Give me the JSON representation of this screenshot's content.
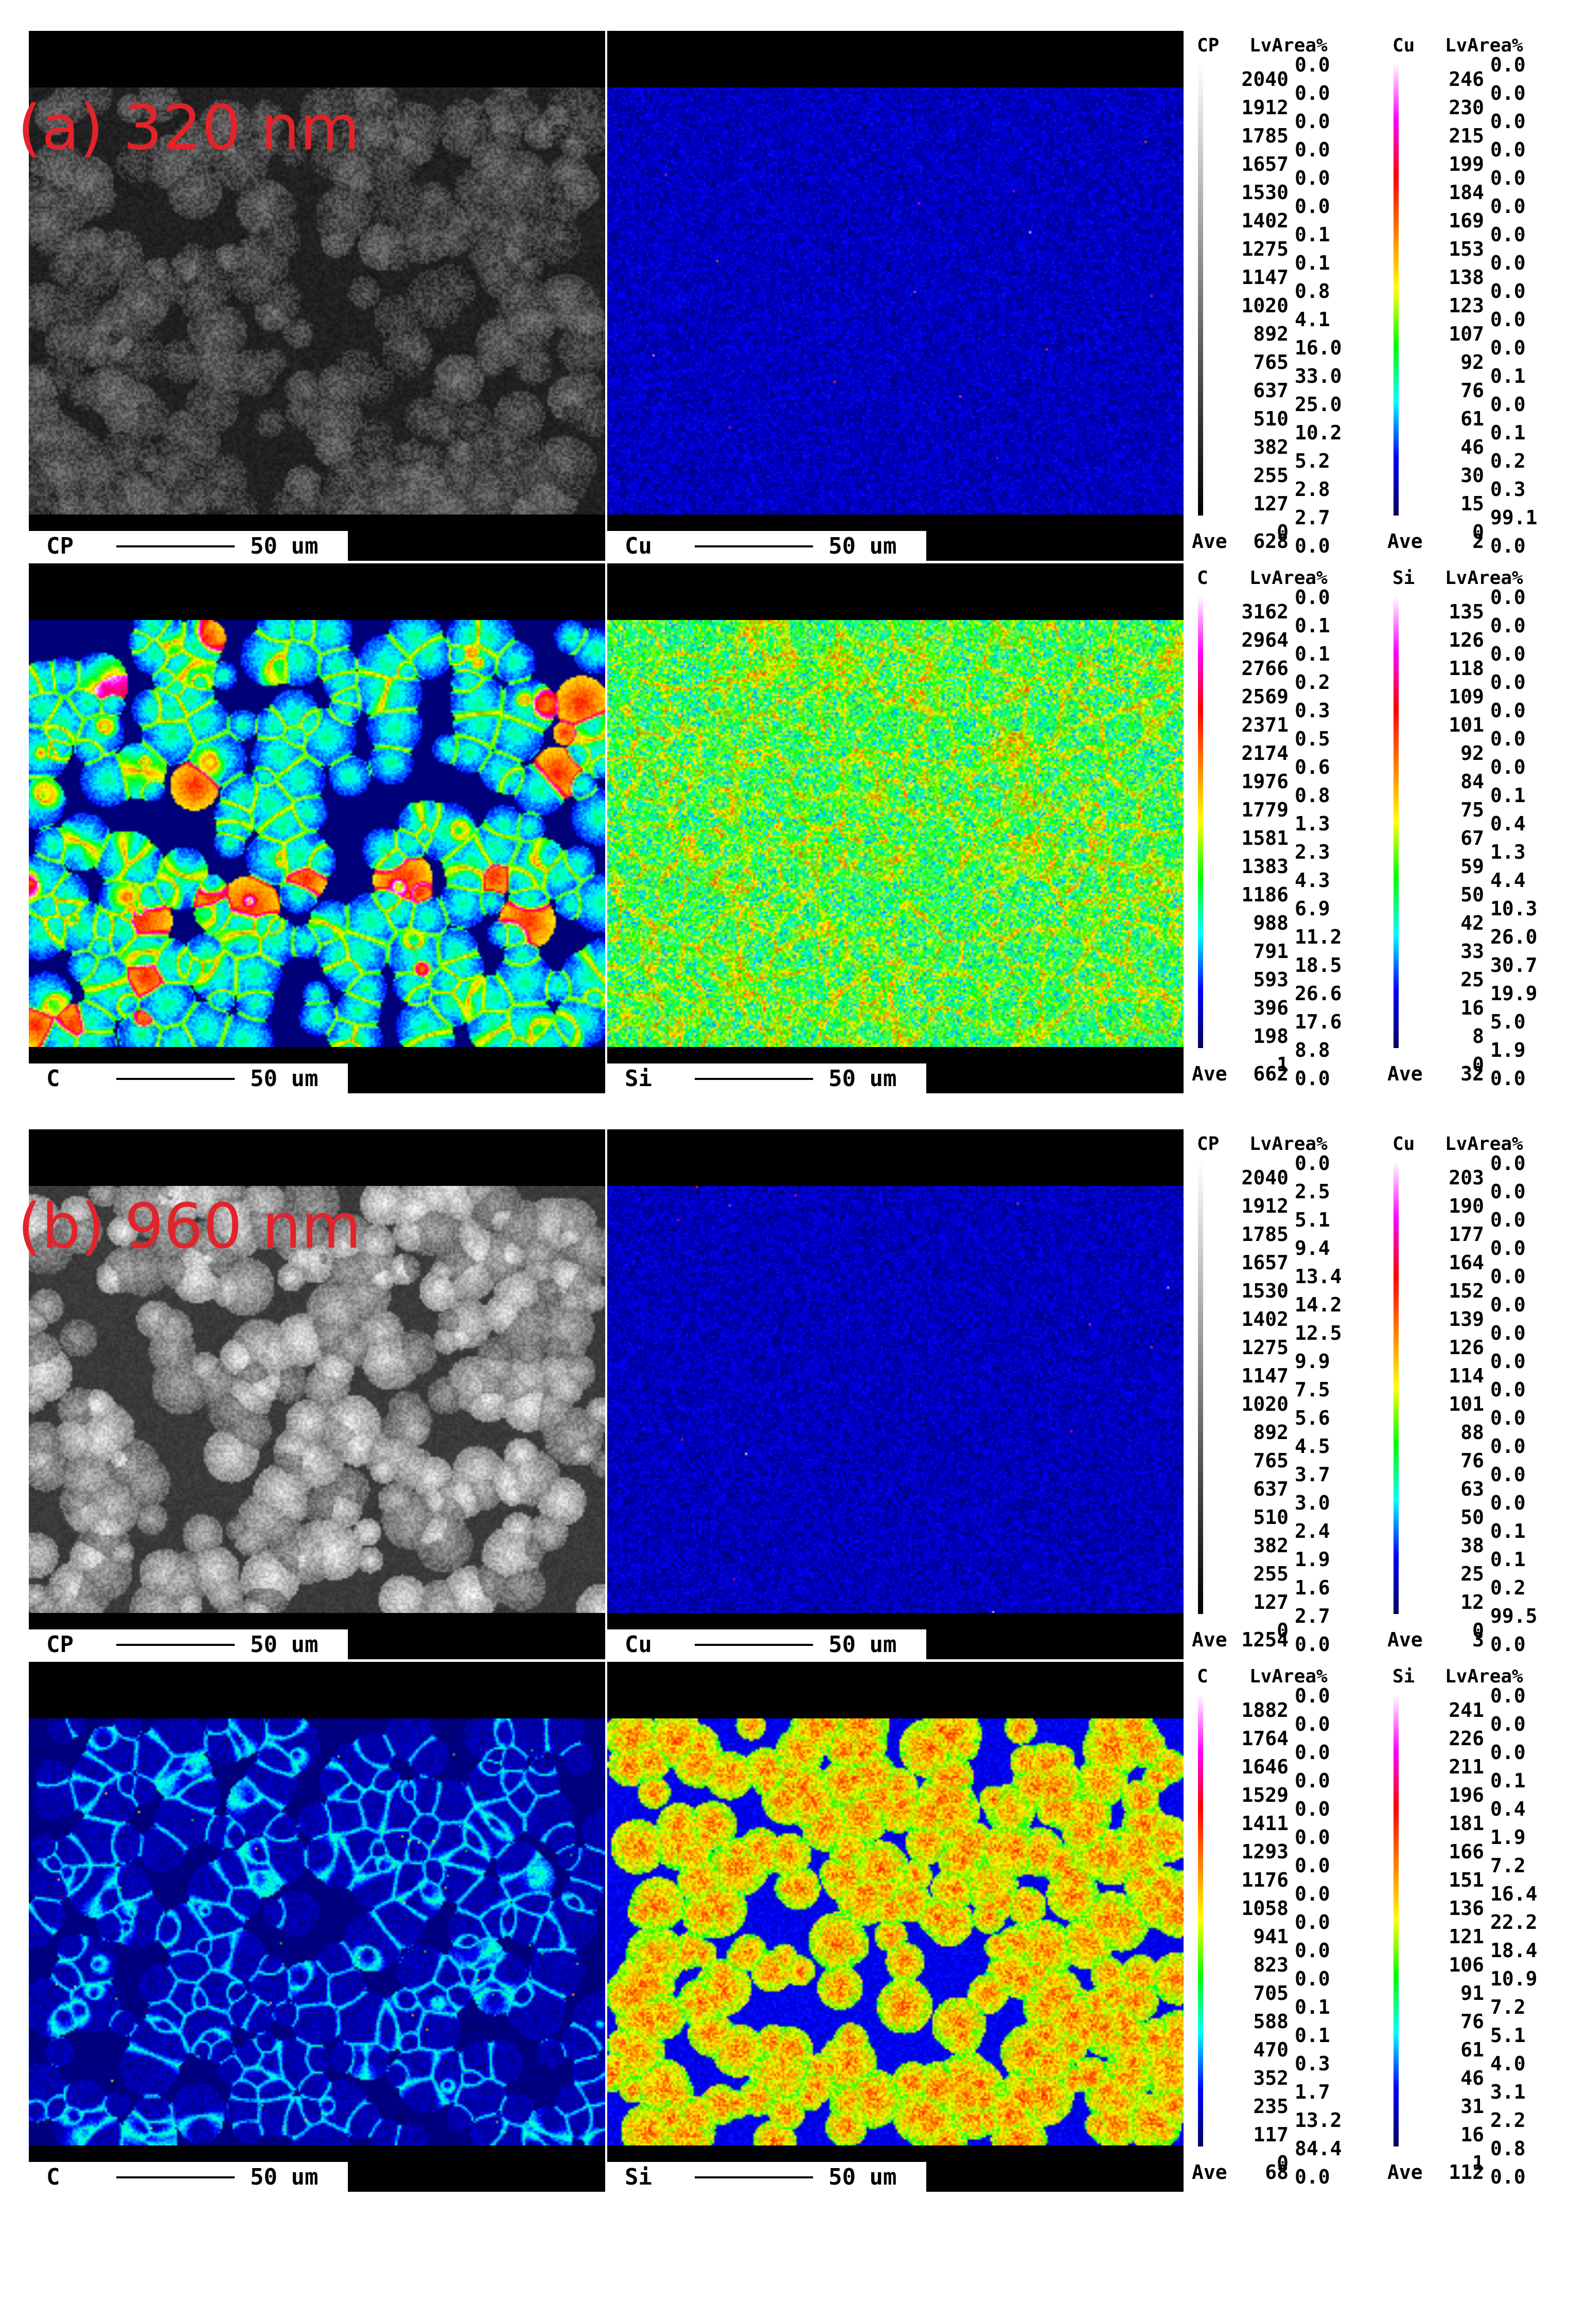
{
  "scale_label": "50 um",
  "ave_label": "Ave",
  "lvarea_label": "LvArea%",
  "colors": {
    "label": "#e3232a",
    "grey_scale": [
      "#000000",
      "#ffffff"
    ],
    "spectrum": [
      "#000060",
      "#0000ff",
      "#00ffff",
      "#00ff00",
      "#ffff00",
      "#ff8000",
      "#ff0000",
      "#ff00ff",
      "#ffffff"
    ]
  },
  "samples": [
    {
      "label": "(a) 320 nm",
      "maps": [
        {
          "element": "CP",
          "palette": "grey",
          "texture": "grains",
          "brightness": 0.35,
          "levels": [
            "2040",
            "1912",
            "1785",
            "1657",
            "1530",
            "1402",
            "1275",
            "1147",
            "1020",
            "892",
            "765",
            "637",
            "510",
            "382",
            "255",
            "127",
            "0"
          ],
          "areas": [
            "0.0",
            "0.0",
            "0.0",
            "0.0",
            "0.0",
            "0.0",
            "0.1",
            "0.1",
            "0.8",
            "4.1",
            "16.0",
            "33.0",
            "25.0",
            "10.2",
            "5.2",
            "2.8",
            "2.7",
            "0.0"
          ],
          "ave": "628"
        },
        {
          "element": "Cu",
          "palette": "spectrum",
          "texture": "sparse",
          "brightness": 0.05,
          "levels": [
            "246",
            "230",
            "215",
            "199",
            "184",
            "169",
            "153",
            "138",
            "123",
            "107",
            "92",
            "76",
            "61",
            "46",
            "30",
            "15",
            "0"
          ],
          "areas": [
            "0.0",
            "0.0",
            "0.0",
            "0.0",
            "0.0",
            "0.0",
            "0.0",
            "0.0",
            "0.0",
            "0.0",
            "0.0",
            "0.1",
            "0.0",
            "0.1",
            "0.2",
            "0.3",
            "99.1",
            "0.0"
          ],
          "ave": "2"
        },
        {
          "element": "C",
          "palette": "spectrum",
          "texture": "grains-edges",
          "brightness": 0.3,
          "levels": [
            "3162",
            "2964",
            "2766",
            "2569",
            "2371",
            "2174",
            "1976",
            "1779",
            "1581",
            "1383",
            "1186",
            "988",
            "791",
            "593",
            "396",
            "198",
            "1"
          ],
          "areas": [
            "0.0",
            "0.1",
            "0.1",
            "0.2",
            "0.3",
            "0.5",
            "0.6",
            "0.8",
            "1.3",
            "2.3",
            "4.3",
            "6.9",
            "11.2",
            "18.5",
            "26.6",
            "17.6",
            "8.8",
            "0.0"
          ],
          "ave": "662"
        },
        {
          "element": "Si",
          "palette": "spectrum",
          "texture": "noise",
          "brightness": 0.38,
          "levels": [
            "135",
            "126",
            "118",
            "109",
            "101",
            "92",
            "84",
            "75",
            "67",
            "59",
            "50",
            "42",
            "33",
            "25",
            "16",
            "8",
            "0"
          ],
          "areas": [
            "0.0",
            "0.0",
            "0.0",
            "0.0",
            "0.0",
            "0.0",
            "0.0",
            "0.1",
            "0.4",
            "1.3",
            "4.4",
            "10.3",
            "26.0",
            "30.7",
            "19.9",
            "5.0",
            "1.9",
            "0.0"
          ],
          "ave": "32"
        }
      ]
    },
    {
      "label": "(b) 960 nm",
      "maps": [
        {
          "element": "CP",
          "palette": "grey",
          "texture": "grains",
          "brightness": 0.75,
          "levels": [
            "2040",
            "1912",
            "1785",
            "1657",
            "1530",
            "1402",
            "1275",
            "1147",
            "1020",
            "892",
            "765",
            "637",
            "510",
            "382",
            "255",
            "127",
            "0"
          ],
          "areas": [
            "0.0",
            "2.5",
            "5.1",
            "9.4",
            "13.4",
            "14.2",
            "12.5",
            "9.9",
            "7.5",
            "5.6",
            "4.5",
            "3.7",
            "3.0",
            "2.4",
            "1.9",
            "1.6",
            "2.7",
            "0.0"
          ],
          "ave": "1254"
        },
        {
          "element": "Cu",
          "palette": "spectrum",
          "texture": "sparse",
          "brightness": 0.04,
          "levels": [
            "203",
            "190",
            "177",
            "164",
            "152",
            "139",
            "126",
            "114",
            "101",
            "88",
            "76",
            "63",
            "50",
            "38",
            "25",
            "12",
            "0"
          ],
          "areas": [
            "0.0",
            "0.0",
            "0.0",
            "0.0",
            "0.0",
            "0.0",
            "0.0",
            "0.0",
            "0.0",
            "0.0",
            "0.0",
            "0.0",
            "0.0",
            "0.1",
            "0.1",
            "0.2",
            "99.5",
            "0.0"
          ],
          "ave": "3"
        },
        {
          "element": "C",
          "palette": "spectrum",
          "texture": "dark-edges",
          "brightness": 0.1,
          "levels": [
            "1882",
            "1764",
            "1646",
            "1529",
            "1411",
            "1293",
            "1176",
            "1058",
            "941",
            "823",
            "705",
            "588",
            "470",
            "352",
            "235",
            "117",
            "0"
          ],
          "areas": [
            "0.0",
            "0.0",
            "0.0",
            "0.0",
            "0.0",
            "0.0",
            "0.0",
            "0.0",
            "0.0",
            "0.0",
            "0.0",
            "0.1",
            "0.1",
            "0.3",
            "1.7",
            "13.2",
            "84.4",
            "0.0"
          ],
          "ave": "68"
        },
        {
          "element": "Si",
          "palette": "spectrum",
          "texture": "grains-bright",
          "brightness": 0.62,
          "levels": [
            "241",
            "226",
            "211",
            "196",
            "181",
            "166",
            "151",
            "136",
            "121",
            "106",
            "91",
            "76",
            "61",
            "46",
            "31",
            "16",
            "1"
          ],
          "areas": [
            "0.0",
            "0.0",
            "0.0",
            "0.1",
            "0.4",
            "1.9",
            "7.2",
            "16.4",
            "22.2",
            "18.4",
            "10.9",
            "7.2",
            "5.1",
            "4.0",
            "3.1",
            "2.2",
            "0.8",
            "0.0"
          ],
          "ave": "112"
        }
      ]
    }
  ]
}
